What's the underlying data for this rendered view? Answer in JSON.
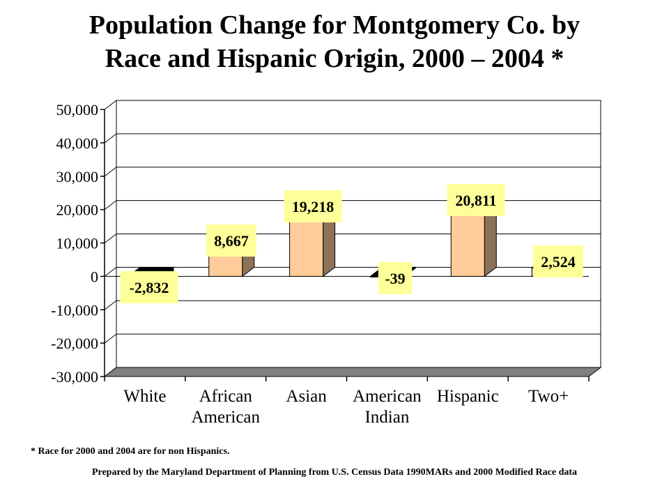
{
  "chart_data": {
    "type": "bar",
    "title_line1": "Population Change for Montgomery Co. by",
    "title_line2": "Race and Hispanic Origin, 2000 – 2004 *",
    "categories": [
      [
        "White"
      ],
      [
        "African",
        "American"
      ],
      [
        "Asian"
      ],
      [
        "American",
        "Indian"
      ],
      [
        "Hispanic"
      ],
      [
        "Two+"
      ]
    ],
    "values": [
      -2832,
      8667,
      19218,
      -39,
      20811,
      2524
    ],
    "value_labels": [
      "-2,832",
      "8,667",
      "19,218",
      "-39",
      "20,811",
      "2,524"
    ],
    "y_ticks": [
      50000,
      40000,
      30000,
      20000,
      10000,
      0,
      -10000,
      -20000,
      -30000
    ],
    "y_tick_labels": [
      "50,000",
      "40,000",
      "30,000",
      "20,000",
      "10,000",
      "0",
      "-10,000",
      "-20,000",
      "-30,000"
    ],
    "ylim": [
      -30000,
      50000
    ],
    "grid": true,
    "style": "3d",
    "colors": {
      "bar_front": "#FFCC99",
      "bar_side": "#8C7356",
      "bar_negative": "#000000",
      "label_bg": "#FFFF99",
      "floor": "#808080"
    }
  },
  "footnote": "* Race  for  2000 and 2004 are for non Hispanics.",
  "credit": "Prepared by the Maryland Department of Planning from U.S. Census Data 1990MARs and 2000 Modified Race data"
}
